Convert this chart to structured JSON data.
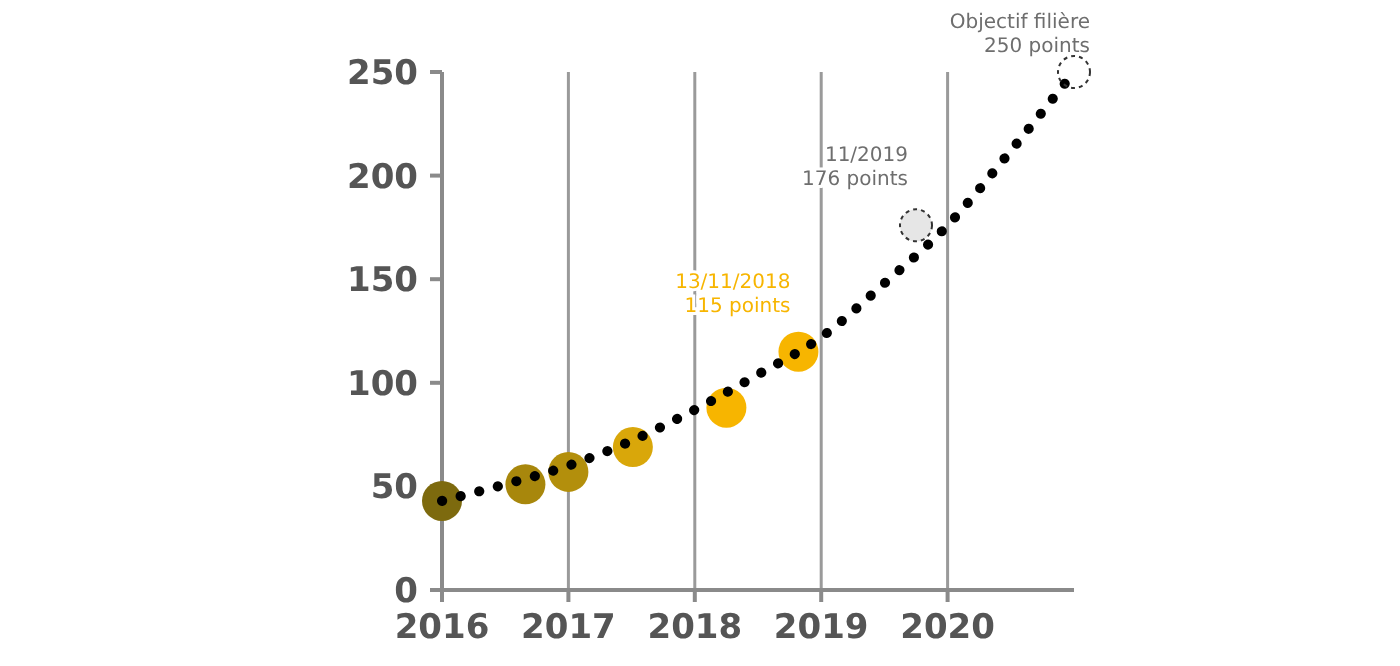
{
  "chart_data": {
    "type": "line",
    "xlim": [
      2016,
      2021
    ],
    "xticks": [
      2016,
      2017,
      2018,
      2019,
      2020
    ],
    "ylim": [
      0,
      250
    ],
    "yticks": [
      0,
      50,
      100,
      150,
      200,
      250
    ],
    "grid": "x",
    "series": [
      {
        "color": "#000000",
        "line_style": "dotted",
        "marker": "none",
        "x": [
          2016,
          2016.5,
          2017,
          2017.5,
          2018,
          2018.5,
          2019,
          2019.5,
          2020,
          2020.5,
          2021
        ],
        "values": [
          43,
          51,
          60,
          72,
          87,
          104,
          122,
          148,
          176,
          212,
          250
        ]
      },
      {
        "type": "scatter",
        "marker": "circle",
        "x": [
          2016,
          2016.66,
          2017,
          2017.51,
          2018.25,
          2018.82
        ],
        "values": [
          43,
          51,
          57,
          69,
          88,
          115
        ],
        "colors": [
          "#7d6a0e",
          "#a8870c",
          "#b38f0c",
          "#d9a70a",
          "#f7b500",
          "#f7b500"
        ]
      }
    ],
    "annotations": [
      {
        "text": "13/11/2018\n115 points",
        "x": 2018.82,
        "y": 115
      },
      {
        "text": "11/2019\n176 points",
        "x": 2019.75,
        "y": 176
      },
      {
        "text": "Objectif filière\n250 points",
        "x": 2021,
        "y": 250
      }
    ]
  }
}
